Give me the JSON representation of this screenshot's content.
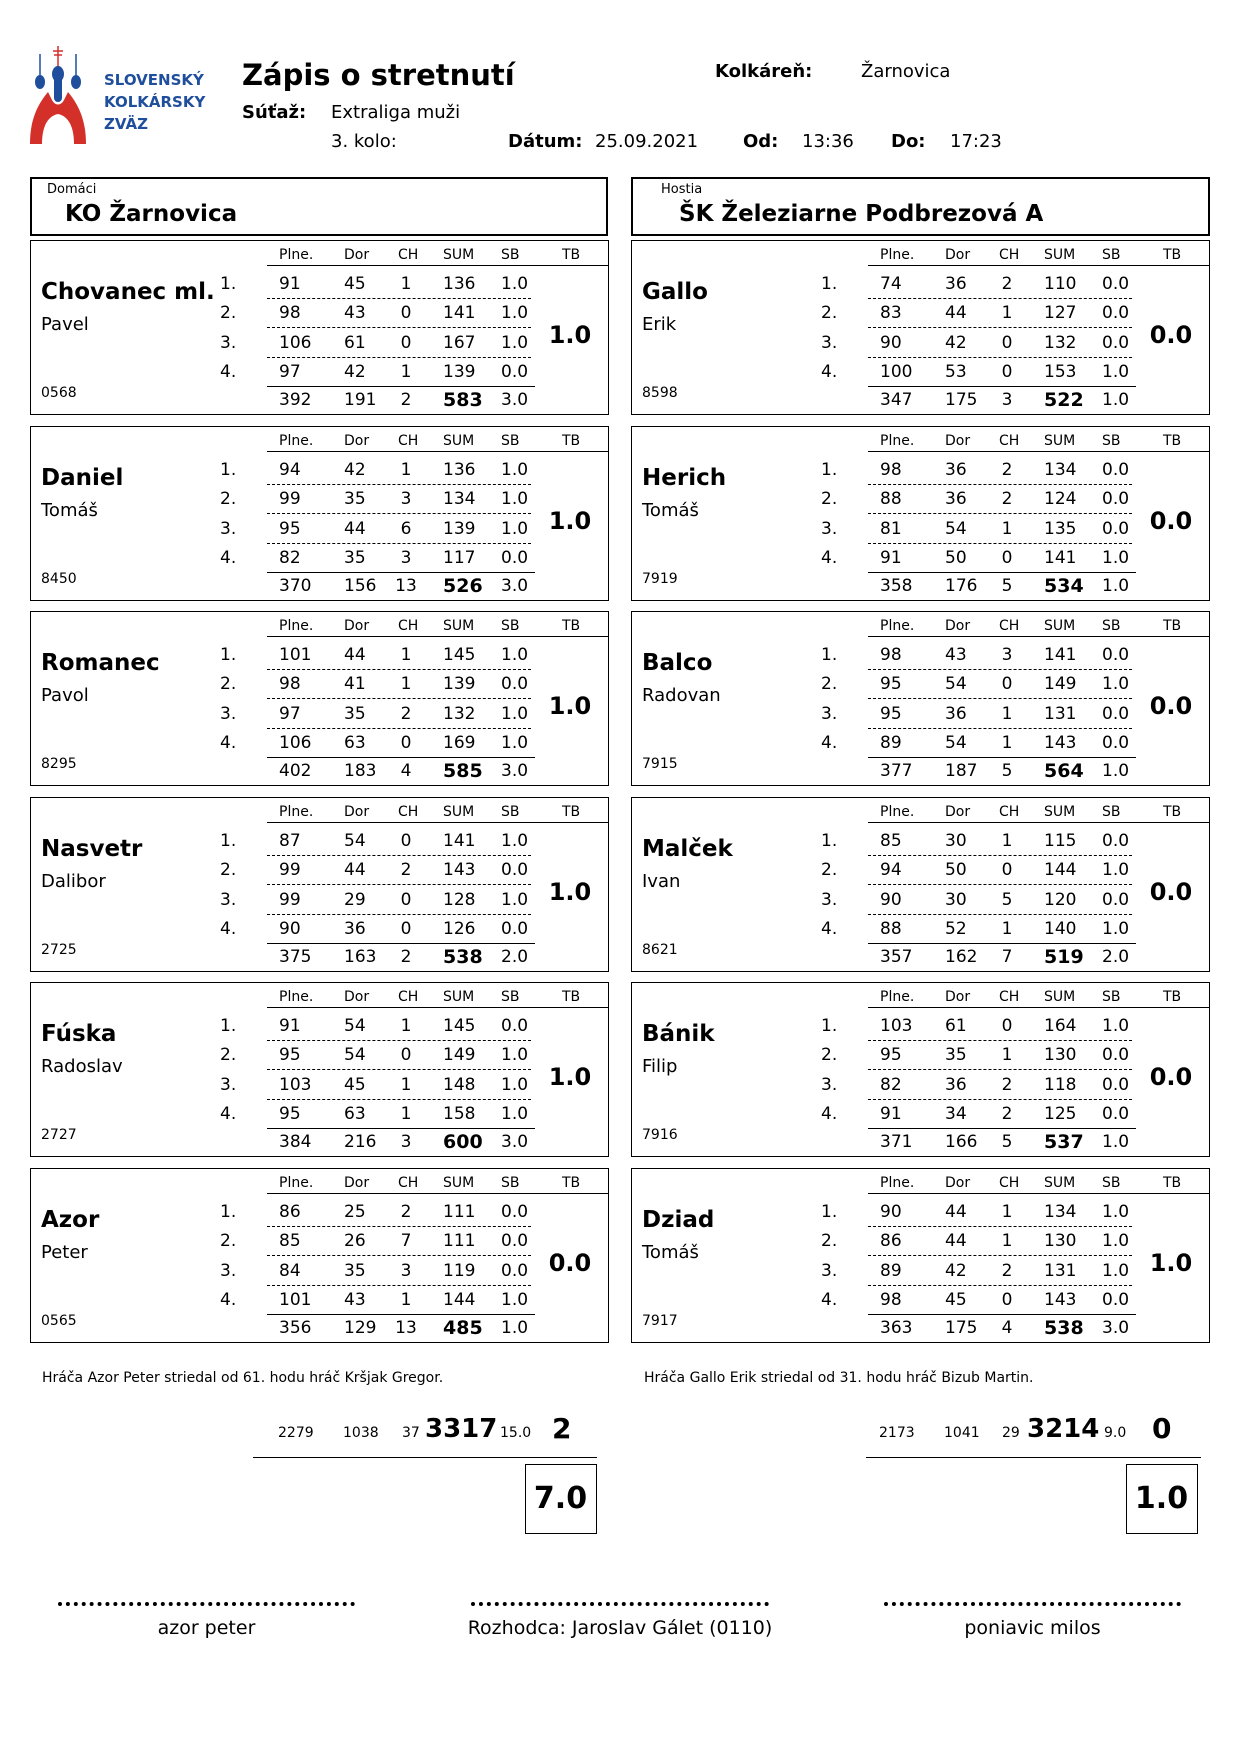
{
  "logo": {
    "lines": [
      "SLOVENSKÝ",
      "KOLKÁRSKY",
      "ZVÄZ"
    ],
    "colors": {
      "blue": "#1f4f9c",
      "red": "#d4302a"
    }
  },
  "header": {
    "title": "Zápis o stretnutí",
    "competition_label": "Súťaž:",
    "competition": "Extraliga muži",
    "round": "3. kolo:",
    "venue_label": "Kolkáreň:",
    "venue": "Žarnovica",
    "date_label": "Dátum:",
    "date": "25.09.2021",
    "from_label": "Od:",
    "from": "13:36",
    "to_label": "Do:",
    "to": "17:23"
  },
  "columns": [
    "Plne.",
    "Dor",
    "CH",
    "SUM",
    "SB",
    "TB"
  ],
  "home": {
    "label": "Domáci",
    "name": "KO Žarnovica",
    "players": [
      {
        "surname": "Chovanec ml.",
        "firstname": "Pavel",
        "id": "0568",
        "rows": [
          [
            "91",
            "45",
            "1",
            "136",
            "1.0"
          ],
          [
            "98",
            "43",
            "0",
            "141",
            "1.0"
          ],
          [
            "106",
            "61",
            "0",
            "167",
            "1.0"
          ],
          [
            "97",
            "42",
            "1",
            "139",
            "0.0"
          ]
        ],
        "total": [
          "392",
          "191",
          "2",
          "583",
          "3.0"
        ],
        "tb": "1.0"
      },
      {
        "surname": "Daniel",
        "firstname": "Tomáš",
        "id": "8450",
        "rows": [
          [
            "94",
            "42",
            "1",
            "136",
            "1.0"
          ],
          [
            "99",
            "35",
            "3",
            "134",
            "1.0"
          ],
          [
            "95",
            "44",
            "6",
            "139",
            "1.0"
          ],
          [
            "82",
            "35",
            "3",
            "117",
            "0.0"
          ]
        ],
        "total": [
          "370",
          "156",
          "13",
          "526",
          "3.0"
        ],
        "tb": "1.0"
      },
      {
        "surname": "Romanec",
        "firstname": "Pavol",
        "id": "8295",
        "rows": [
          [
            "101",
            "44",
            "1",
            "145",
            "1.0"
          ],
          [
            "98",
            "41",
            "1",
            "139",
            "0.0"
          ],
          [
            "97",
            "35",
            "2",
            "132",
            "1.0"
          ],
          [
            "106",
            "63",
            "0",
            "169",
            "1.0"
          ]
        ],
        "total": [
          "402",
          "183",
          "4",
          "585",
          "3.0"
        ],
        "tb": "1.0"
      },
      {
        "surname": "Nasvetr",
        "firstname": "Dalibor",
        "id": "2725",
        "rows": [
          [
            "87",
            "54",
            "0",
            "141",
            "1.0"
          ],
          [
            "99",
            "44",
            "2",
            "143",
            "0.0"
          ],
          [
            "99",
            "29",
            "0",
            "128",
            "1.0"
          ],
          [
            "90",
            "36",
            "0",
            "126",
            "0.0"
          ]
        ],
        "total": [
          "375",
          "163",
          "2",
          "538",
          "2.0"
        ],
        "tb": "1.0"
      },
      {
        "surname": "Fúska",
        "firstname": "Radoslav",
        "id": "2727",
        "rows": [
          [
            "91",
            "54",
            "1",
            "145",
            "0.0"
          ],
          [
            "95",
            "54",
            "0",
            "149",
            "1.0"
          ],
          [
            "103",
            "45",
            "1",
            "148",
            "1.0"
          ],
          [
            "95",
            "63",
            "1",
            "158",
            "1.0"
          ]
        ],
        "total": [
          "384",
          "216",
          "3",
          "600",
          "3.0"
        ],
        "tb": "1.0"
      },
      {
        "surname": "Azor",
        "firstname": "Peter",
        "id": "0565",
        "rows": [
          [
            "86",
            "25",
            "2",
            "111",
            "0.0"
          ],
          [
            "85",
            "26",
            "7",
            "111",
            "0.0"
          ],
          [
            "84",
            "35",
            "3",
            "119",
            "0.0"
          ],
          [
            "101",
            "43",
            "1",
            "144",
            "1.0"
          ]
        ],
        "total": [
          "356",
          "129",
          "13",
          "485",
          "1.0"
        ],
        "tb": "0.0"
      }
    ],
    "note": "Hráča Azor Peter striedal od 61. hodu hráč Kršjak Gregor.",
    "totals": [
      "2279",
      "1038",
      "37",
      "3317",
      "15.0",
      "2"
    ],
    "final": "7.0"
  },
  "away": {
    "label": "Hostia",
    "name": "ŠK Železiarne Podbrezová A",
    "players": [
      {
        "surname": "Gallo",
        "firstname": "Erik",
        "id": "8598",
        "rows": [
          [
            "74",
            "36",
            "2",
            "110",
            "0.0"
          ],
          [
            "83",
            "44",
            "1",
            "127",
            "0.0"
          ],
          [
            "90",
            "42",
            "0",
            "132",
            "0.0"
          ],
          [
            "100",
            "53",
            "0",
            "153",
            "1.0"
          ]
        ],
        "total": [
          "347",
          "175",
          "3",
          "522",
          "1.0"
        ],
        "tb": "0.0"
      },
      {
        "surname": "Herich",
        "firstname": "Tomáš",
        "id": "7919",
        "rows": [
          [
            "98",
            "36",
            "2",
            "134",
            "0.0"
          ],
          [
            "88",
            "36",
            "2",
            "124",
            "0.0"
          ],
          [
            "81",
            "54",
            "1",
            "135",
            "0.0"
          ],
          [
            "91",
            "50",
            "0",
            "141",
            "1.0"
          ]
        ],
        "total": [
          "358",
          "176",
          "5",
          "534",
          "1.0"
        ],
        "tb": "0.0"
      },
      {
        "surname": "Balco",
        "firstname": "Radovan",
        "id": "7915",
        "rows": [
          [
            "98",
            "43",
            "3",
            "141",
            "0.0"
          ],
          [
            "95",
            "54",
            "0",
            "149",
            "1.0"
          ],
          [
            "95",
            "36",
            "1",
            "131",
            "0.0"
          ],
          [
            "89",
            "54",
            "1",
            "143",
            "0.0"
          ]
        ],
        "total": [
          "377",
          "187",
          "5",
          "564",
          "1.0"
        ],
        "tb": "0.0"
      },
      {
        "surname": "Malček",
        "firstname": "Ivan",
        "id": "8621",
        "rows": [
          [
            "85",
            "30",
            "1",
            "115",
            "0.0"
          ],
          [
            "94",
            "50",
            "0",
            "144",
            "1.0"
          ],
          [
            "90",
            "30",
            "5",
            "120",
            "0.0"
          ],
          [
            "88",
            "52",
            "1",
            "140",
            "1.0"
          ]
        ],
        "total": [
          "357",
          "162",
          "7",
          "519",
          "2.0"
        ],
        "tb": "0.0"
      },
      {
        "surname": "Bánik",
        "firstname": "Filip",
        "id": "7916",
        "rows": [
          [
            "103",
            "61",
            "0",
            "164",
            "1.0"
          ],
          [
            "95",
            "35",
            "1",
            "130",
            "0.0"
          ],
          [
            "82",
            "36",
            "2",
            "118",
            "0.0"
          ],
          [
            "91",
            "34",
            "2",
            "125",
            "0.0"
          ]
        ],
        "total": [
          "371",
          "166",
          "5",
          "537",
          "1.0"
        ],
        "tb": "0.0"
      },
      {
        "surname": "Dziad",
        "firstname": "Tomáš",
        "id": "7917",
        "rows": [
          [
            "90",
            "44",
            "1",
            "134",
            "1.0"
          ],
          [
            "86",
            "44",
            "1",
            "130",
            "1.0"
          ],
          [
            "89",
            "42",
            "2",
            "131",
            "1.0"
          ],
          [
            "98",
            "45",
            "0",
            "143",
            "0.0"
          ]
        ],
        "total": [
          "363",
          "175",
          "4",
          "538",
          "3.0"
        ],
        "tb": "1.0"
      }
    ],
    "note": "Hráča Gallo Erik striedal od 31. hodu hráč Bizub Martin.",
    "totals": [
      "2173",
      "1041",
      "29",
      "3214",
      "9.0",
      "0"
    ],
    "final": "1.0"
  },
  "signatures": [
    "azor peter",
    "Rozhodca: Jaroslav Gálet (0110)",
    "poniavic milos"
  ]
}
